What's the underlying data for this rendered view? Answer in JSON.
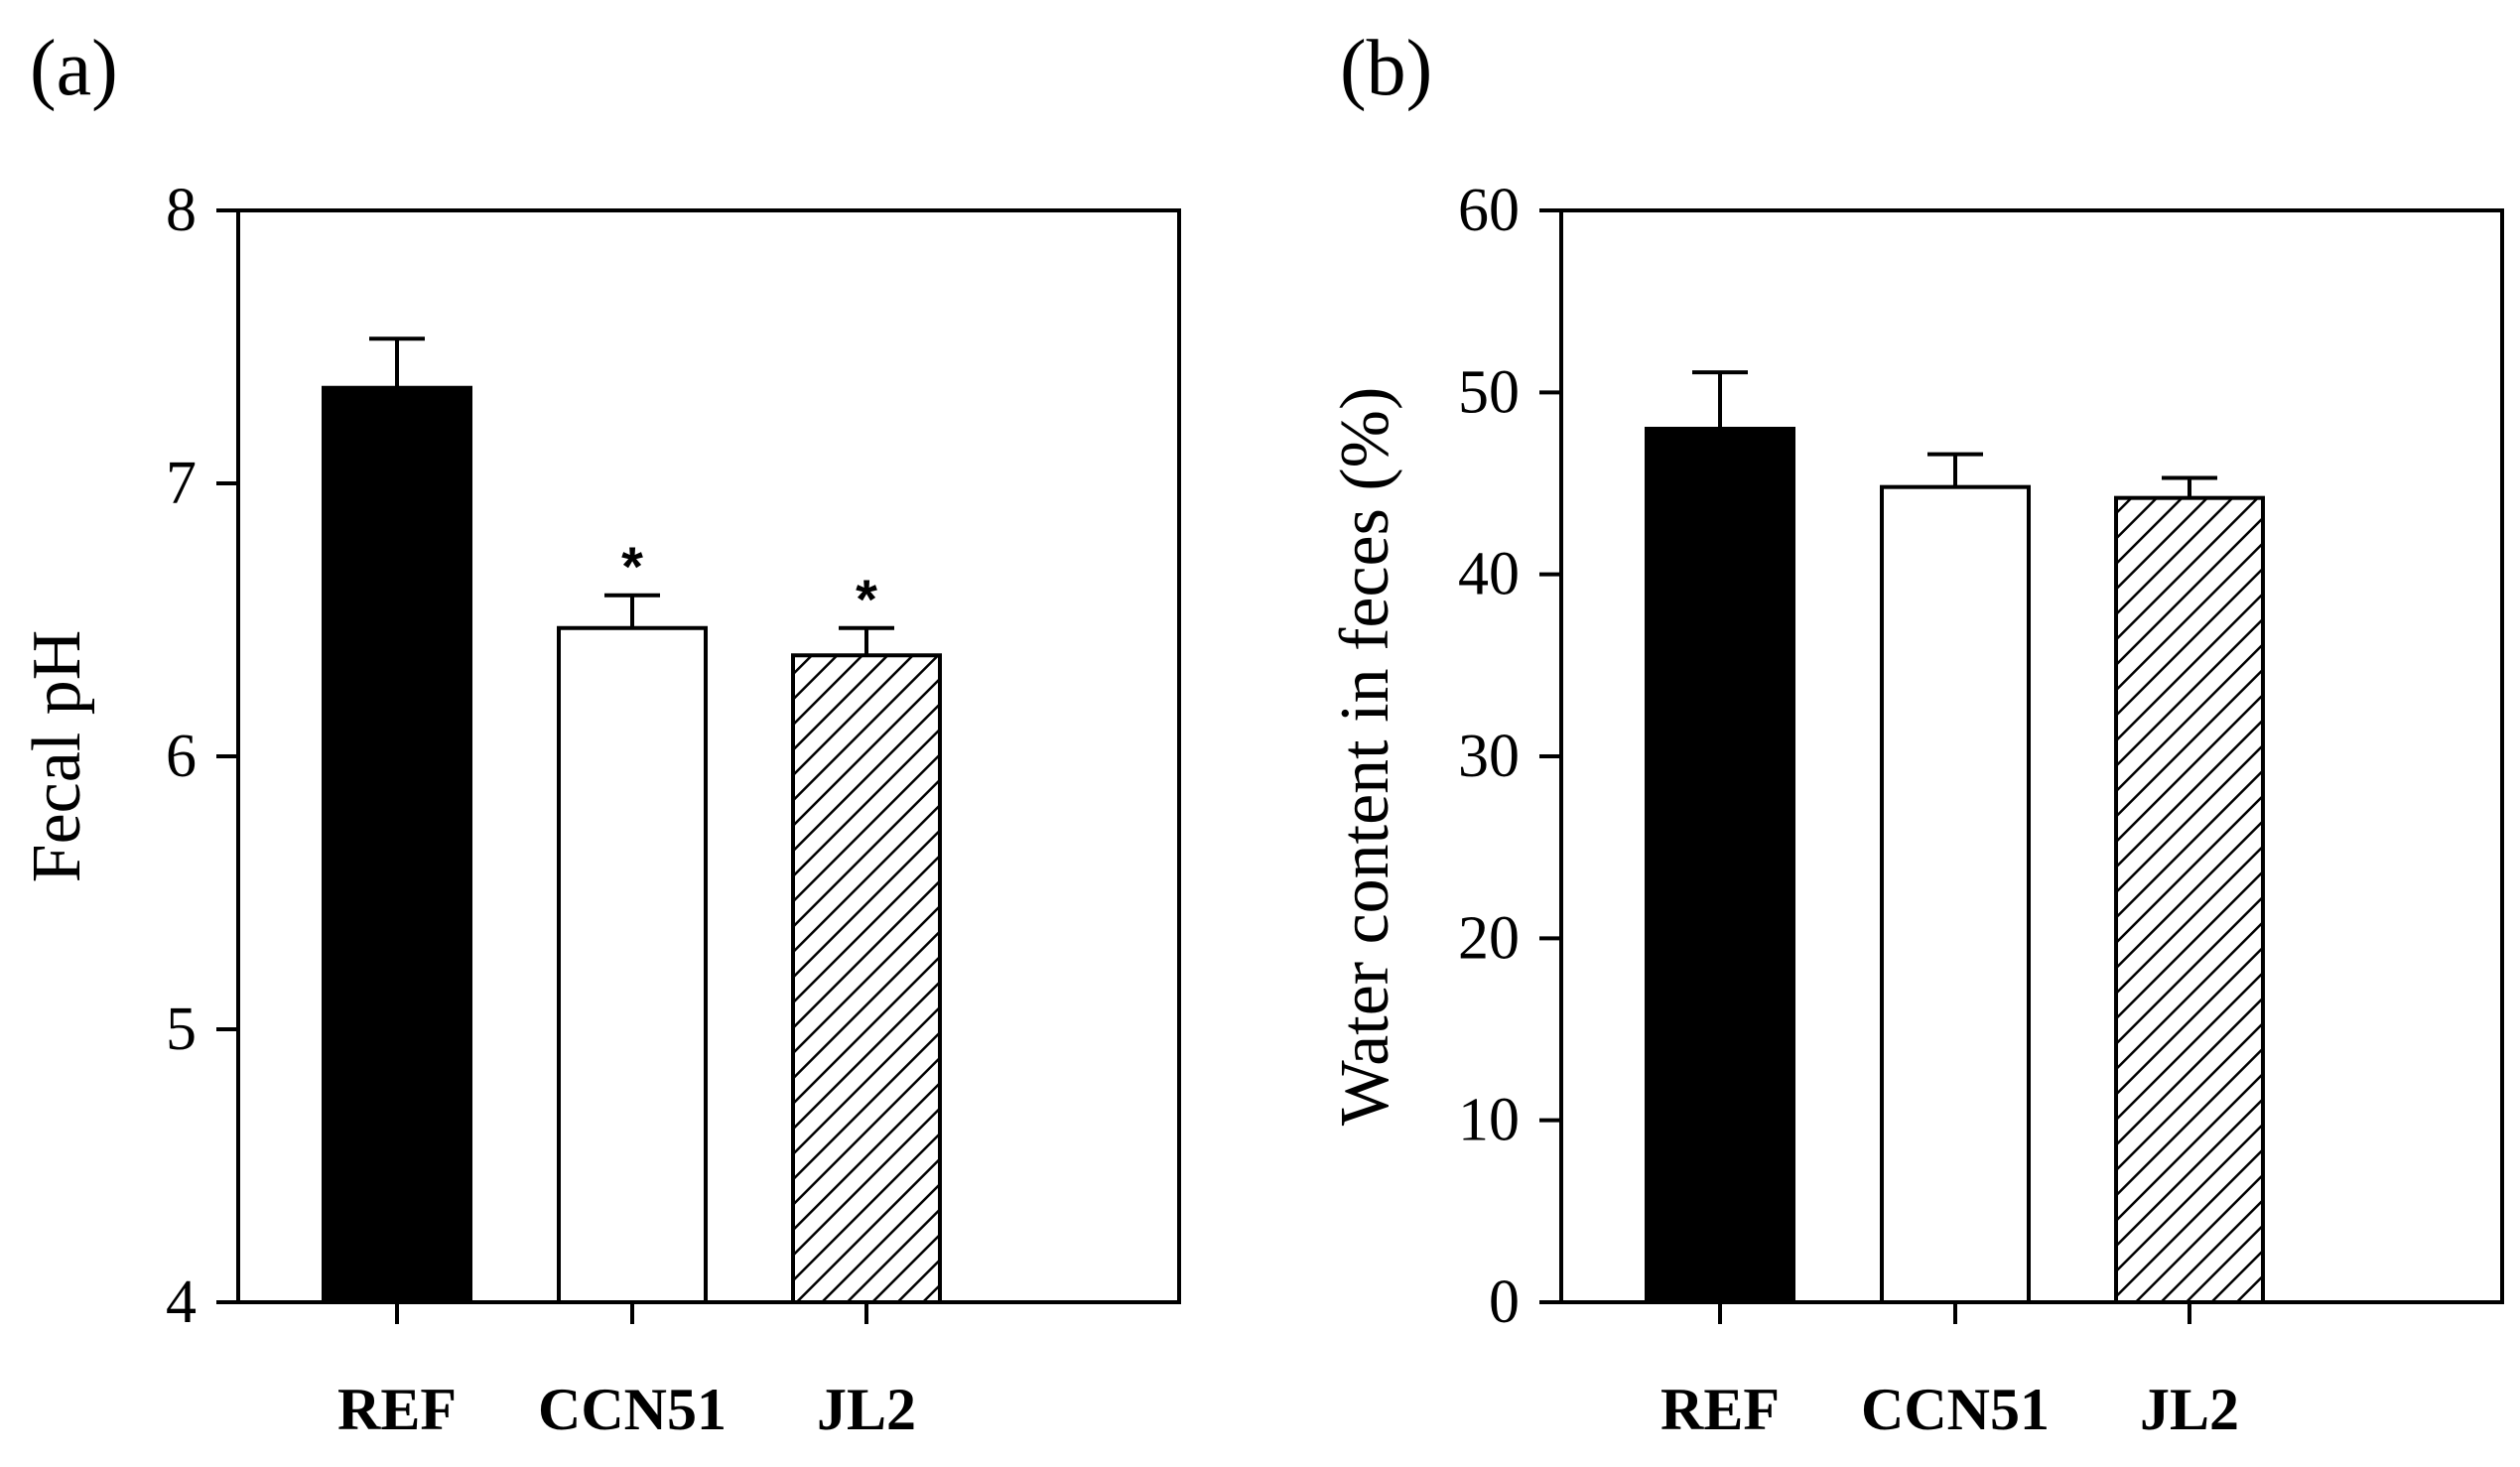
{
  "chart_data": [
    {
      "type": "bar",
      "panel_label": "(a)",
      "categories": [
        "REF",
        "CCN51",
        "JL2"
      ],
      "values": [
        7.35,
        6.47,
        6.37
      ],
      "errors": [
        0.18,
        0.12,
        0.1
      ],
      "significance": [
        "",
        "*",
        "*"
      ],
      "fills": [
        "solid",
        "white",
        "hatched"
      ],
      "ylabel": "Fecal pH",
      "xlabel": "",
      "ylim": [
        4,
        8
      ],
      "yticks": [
        4,
        5,
        6,
        7,
        8
      ],
      "grid": false
    },
    {
      "type": "bar",
      "panel_label": "(b)",
      "categories": [
        "REF",
        "CCN51",
        "JL2"
      ],
      "values": [
        48,
        44.8,
        44.2
      ],
      "errors": [
        3.1,
        1.8,
        1.1
      ],
      "significance": [
        "",
        "",
        ""
      ],
      "fills": [
        "solid",
        "white",
        "hatched"
      ],
      "ylabel": "Water content in feces (%)",
      "xlabel": "",
      "ylim": [
        0,
        60
      ],
      "yticks": [
        0,
        10,
        20,
        30,
        40,
        50,
        60
      ],
      "grid": false
    }
  ],
  "colors": {
    "bar_solid": "#000000",
    "bar_white": "#ffffff",
    "stroke": "#000000"
  }
}
